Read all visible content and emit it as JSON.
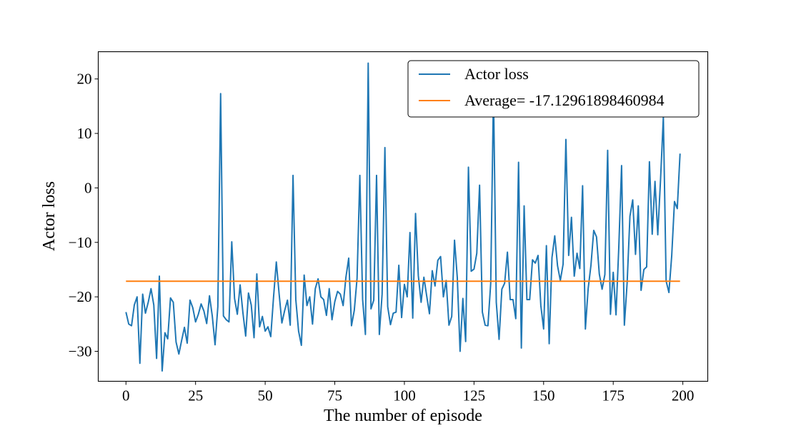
{
  "chart_data": {
    "type": "line",
    "title": "",
    "xlabel": "The number of episode",
    "ylabel": "Actor loss",
    "xlim": [
      -9.95,
      208.95
    ],
    "ylim": [
      -35.5,
      25
    ],
    "xticks": [
      0,
      25,
      50,
      75,
      100,
      125,
      150,
      175,
      200
    ],
    "yticks": [
      -30,
      -20,
      -10,
      0,
      10,
      20
    ],
    "xtick_labels": [
      "0",
      "25",
      "50",
      "75",
      "100",
      "125",
      "150",
      "175",
      "200"
    ],
    "ytick_labels": [
      "−30",
      "−20",
      "−10",
      "0",
      "10",
      "20"
    ],
    "grid": false,
    "legend": "upper right",
    "series": [
      {
        "name": "Actor loss",
        "color": "#1f77b4",
        "x_start": 0,
        "x_step": 1,
        "values": [
          -22.8,
          -25.0,
          -25.3,
          -21.5,
          -20.0,
          -32.2,
          -19.5,
          -23.0,
          -21.0,
          -18.5,
          -21.5,
          -31.3,
          -16.2,
          -33.6,
          -26.6,
          -27.7,
          -20.2,
          -21.0,
          -28.3,
          -30.5,
          -28.0,
          -25.6,
          -28.5,
          -20.6,
          -22.0,
          -24.6,
          -23.2,
          -21.3,
          -22.6,
          -24.9,
          -19.8,
          -23.5,
          -28.8,
          -21.8,
          17.3,
          -23.5,
          -24.2,
          -24.6,
          -9.9,
          -20.3,
          -23.2,
          -17.8,
          -22.9,
          -27.2,
          -19.3,
          -21.5,
          -27.5,
          -15.8,
          -25.5,
          -23.6,
          -26.3,
          -25.5,
          -27.3,
          -20.1,
          -13.6,
          -19.4,
          -24.8,
          -22.5,
          -20.6,
          -25.2,
          2.3,
          -20.5,
          -26.3,
          -28.9,
          -16.0,
          -21.6,
          -20.0,
          -25.0,
          -18.5,
          -16.7,
          -20.0,
          -20.5,
          -23.4,
          -18.5,
          -24.2,
          -20.9,
          -19.0,
          -19.5,
          -21.6,
          -16.4,
          -12.9,
          -25.3,
          -22.5,
          -16.6,
          2.3,
          -20.5,
          -26.9,
          22.9,
          -22.2,
          -20.6,
          2.3,
          -26.9,
          -19.5,
          7.4,
          -21.8,
          -25.1,
          -23.0,
          -22.8,
          -14.2,
          -23.8,
          -17.7,
          -20.0,
          -8.2,
          -23.9,
          -4.7,
          -16.1,
          -21.0,
          -16.4,
          -19.8,
          -23.1,
          -15.2,
          -18.0,
          -13.3,
          -12.6,
          -20.0,
          -17.0,
          -25.2,
          -23.6,
          -9.6,
          -16.5,
          -30.0,
          -20.3,
          -28.2,
          3.8,
          -15.3,
          -14.9,
          -12.0,
          0.5,
          -22.8,
          -25.2,
          -25.3,
          -17.5,
          17.8,
          -21.0,
          -27.8,
          -18.6,
          -17.5,
          -11.8,
          -20.5,
          -20.5,
          -24.0,
          4.7,
          -29.4,
          -3.3,
          -20.5,
          -20.5,
          -13.2,
          -13.8,
          -12.4,
          -21.6,
          -25.9,
          -10.6,
          -28.6,
          -12.8,
          -8.8,
          -14.3,
          -17.0,
          -14.0,
          8.9,
          -12.4,
          -5.4,
          -16.2,
          -12.0,
          -14.8,
          0.4,
          -25.9,
          -18.5,
          -14.2,
          -7.8,
          -9.0,
          -15.8,
          -18.6,
          -15.9,
          6.9,
          -23.2,
          -15.5,
          -23.3,
          -10.9,
          4.1,
          -25.2,
          -17.4,
          -5.2,
          -2.2,
          -12.2,
          -3.3,
          -18.8,
          -15.0,
          -14.5,
          4.8,
          -8.5,
          1.2,
          -8.6,
          1.6,
          13.0,
          -17.1,
          -19.2,
          -12.5,
          -2.5,
          -3.8,
          6.3
        ]
      },
      {
        "name": "Average= -17.12961898460984",
        "color": "#ff7f0e",
        "x": [
          0,
          199
        ],
        "values": [
          -17.12961898460984,
          -17.12961898460984
        ]
      }
    ]
  }
}
